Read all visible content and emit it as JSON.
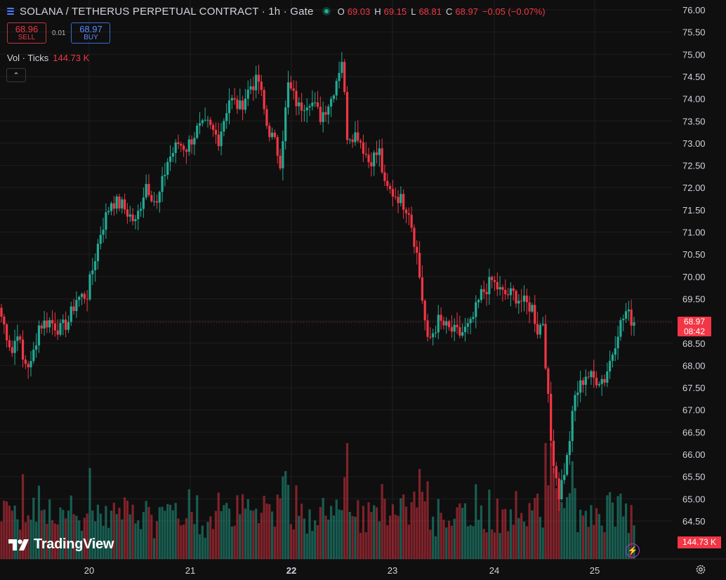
{
  "header": {
    "title": "SOLANA / TETHERUS PERPETUAL CONTRACT · 1h · Gate",
    "ohlc": [
      {
        "k": "O",
        "v": "69.03"
      },
      {
        "k": "H",
        "v": "69.15"
      },
      {
        "k": "L",
        "v": "68.81"
      },
      {
        "k": "C",
        "v": "68.97"
      },
      {
        "k": "",
        "v": "−0.05 (−0.07%)"
      }
    ]
  },
  "trade": {
    "sell_price": "68.96",
    "sell_label": "SELL",
    "spread": "0.01",
    "buy_price": "68.97",
    "buy_label": "BUY"
  },
  "volume": {
    "label": "Vol · Ticks",
    "value": "144.73 K"
  },
  "price_tag": {
    "price": "68.97",
    "countdown": "08:42"
  },
  "volume_tag": "144.73 K",
  "logo_text": "TradingView",
  "colors": {
    "up": "#22ab94",
    "down": "#f23645",
    "background": "#0f0f0f",
    "grid": "#1f1f1f"
  },
  "chart_data": {
    "type": "candlestick",
    "price_axis": {
      "min": 64.0,
      "max": 76.0,
      "step": 0.5,
      "labels": [
        "76.00",
        "75.50",
        "75.00",
        "74.50",
        "74.00",
        "73.50",
        "73.00",
        "72.50",
        "72.00",
        "71.50",
        "71.00",
        "70.50",
        "70.00",
        "69.50",
        "69.00",
        "68.50",
        "68.00",
        "67.50",
        "67.00",
        "66.50",
        "66.00",
        "65.50",
        "65.00",
        "64.50"
      ]
    },
    "time_axis": {
      "labels": [
        "20",
        "21",
        "22",
        "23",
        "24",
        "25"
      ],
      "bold_label": "22"
    },
    "grid": true,
    "last_price": 68.97,
    "waypoints": [
      [
        0,
        69.1
      ],
      [
        4,
        68.3
      ],
      [
        6,
        68.8
      ],
      [
        8,
        68.1
      ],
      [
        11,
        68.0
      ],
      [
        14,
        68.9
      ],
      [
        18,
        69.0
      ],
      [
        22,
        68.8
      ],
      [
        25,
        69.0
      ],
      [
        28,
        69.5
      ],
      [
        32,
        69.6
      ],
      [
        37,
        71.0
      ],
      [
        41,
        71.7
      ],
      [
        45,
        71.6
      ],
      [
        50,
        71.2
      ],
      [
        54,
        72.1
      ],
      [
        58,
        71.6
      ],
      [
        62,
        72.6
      ],
      [
        66,
        73.0
      ],
      [
        69,
        72.9
      ],
      [
        73,
        73.3
      ],
      [
        77,
        73.4
      ],
      [
        81,
        73.1
      ],
      [
        85,
        74.0
      ],
      [
        89,
        73.8
      ],
      [
        93,
        74.3
      ],
      [
        96,
        74.4
      ],
      [
        99,
        73.4
      ],
      [
        102,
        73.0
      ],
      [
        104,
        72.6
      ],
      [
        107,
        74.3
      ],
      [
        111,
        73.8
      ],
      [
        115,
        74.0
      ],
      [
        119,
        73.6
      ],
      [
        123,
        74.0
      ],
      [
        127,
        74.9
      ],
      [
        129,
        73.2
      ],
      [
        133,
        73.2
      ],
      [
        137,
        72.6
      ],
      [
        141,
        72.8
      ],
      [
        143,
        72.0
      ],
      [
        148,
        71.8
      ],
      [
        152,
        71.5
      ],
      [
        155,
        70.5
      ],
      [
        159,
        68.5
      ],
      [
        163,
        69.0
      ],
      [
        167,
        68.8
      ],
      [
        171,
        68.7
      ],
      [
        175,
        68.9
      ],
      [
        179,
        69.6
      ],
      [
        183,
        69.9
      ],
      [
        187,
        69.6
      ],
      [
        191,
        69.6
      ],
      [
        195,
        69.4
      ],
      [
        198,
        69.3
      ],
      [
        200,
        68.8
      ],
      [
        202,
        69.0
      ],
      [
        205,
        66.3
      ],
      [
        208,
        65.1
      ],
      [
        211,
        65.9
      ],
      [
        214,
        67.3
      ],
      [
        218,
        67.8
      ],
      [
        221,
        67.7
      ],
      [
        225,
        67.7
      ],
      [
        228,
        68.3
      ],
      [
        230,
        68.8
      ],
      [
        233,
        69.2
      ],
      [
        236,
        68.95
      ]
    ],
    "volume_bars_count": 237
  }
}
